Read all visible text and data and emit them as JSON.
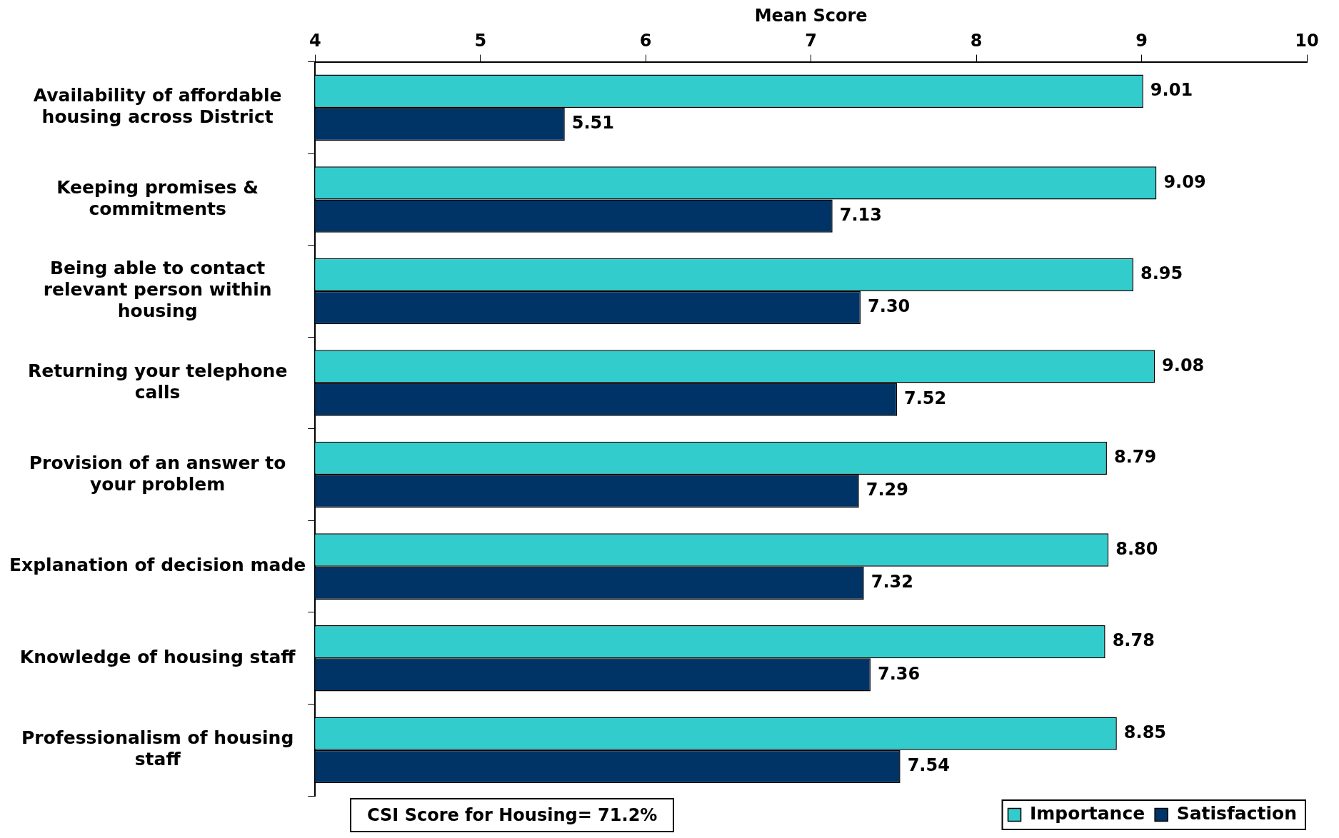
{
  "chart_data": {
    "type": "bar",
    "orientation": "horizontal",
    "xlabel": "Mean Score",
    "categories": [
      "Availability of affordable housing across District",
      "Keeping promises & commitments",
      "Being able to contact relevant person within housing",
      "Returning your telephone calls",
      "Provision of an answer to your problem",
      "Explanation of decision made",
      "Knowledge of housing staff",
      "Professionalism of housing staff"
    ],
    "series": [
      {
        "name": "Importance",
        "color": "#33cccc",
        "values": [
          9.01,
          9.09,
          8.95,
          9.08,
          8.79,
          8.8,
          8.78,
          8.85
        ],
        "value_labels": [
          "9.01",
          "9.09",
          "8.95",
          "9.08",
          "8.79",
          "8.80",
          "8.78",
          "8.85"
        ]
      },
      {
        "name": "Satisfaction",
        "color": "#003366",
        "values": [
          5.51,
          7.13,
          7.3,
          7.52,
          7.29,
          7.32,
          7.36,
          7.54
        ],
        "value_labels": [
          "5.51",
          "7.13",
          "7.30",
          "7.52",
          "7.29",
          "7.32",
          "7.36",
          "7.54"
        ]
      }
    ],
    "xlim": [
      4,
      10
    ],
    "xticks": [
      4,
      5,
      6,
      7,
      8,
      9,
      10
    ],
    "grid": false,
    "legend": "bottom right",
    "annotations": [
      "CSI Score for Housing= 71.2%"
    ]
  }
}
